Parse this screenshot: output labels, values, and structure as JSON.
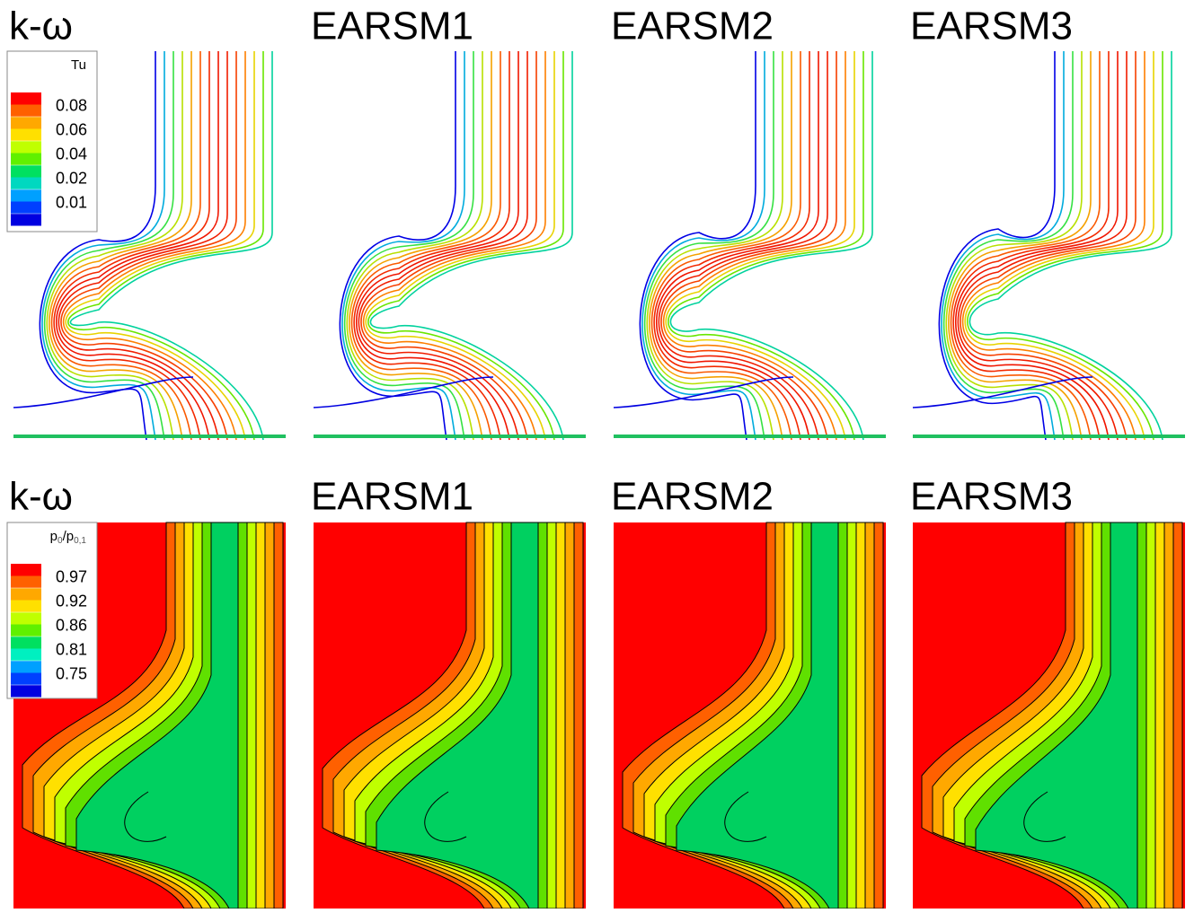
{
  "rows": [
    {
      "titles": [
        "k-ω",
        "EARSM1",
        "EARSM2",
        "EARSM3"
      ],
      "legend": {
        "title_parts": [
          {
            "text": "Tu"
          }
        ],
        "labels": [
          0.08,
          0.06,
          0.04,
          0.02,
          0.01
        ],
        "colors": [
          "#ff0000",
          "#ff6000",
          "#ffa800",
          "#ffe000",
          "#c0ff00",
          "#60f000",
          "#00e060",
          "#00d8c0",
          "#00a0ff",
          "#0040ff",
          "#0000e0"
        ]
      }
    },
    {
      "titles": [
        "k-ω",
        "EARSM1",
        "EARSM2",
        "EARSM3"
      ],
      "legend": {
        "title_parts": [
          {
            "text": "p"
          },
          {
            "text": "0",
            "sub": true
          },
          {
            "text": "/p"
          },
          {
            "text": "0,1",
            "sub": true
          }
        ],
        "labels": [
          0.97,
          0.92,
          0.86,
          0.81,
          0.75
        ],
        "colors": [
          "#ff0000",
          "#ff6000",
          "#ffa800",
          "#ffe000",
          "#c0ff00",
          "#60f000",
          "#00e060",
          "#00f0c0",
          "#00a0ff",
          "#0040ff",
          "#0000e0"
        ]
      }
    }
  ]
}
